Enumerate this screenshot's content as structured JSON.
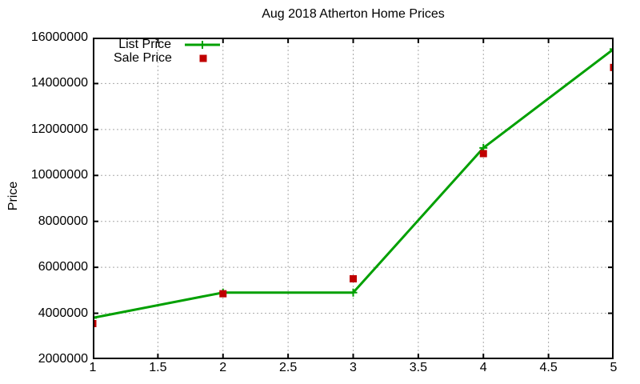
{
  "colors": {
    "background": "#ffffff",
    "axis": "#000000",
    "grid": "#a8a8a8",
    "list_price": "#00a000",
    "sale_price": "#c00000"
  },
  "chart_data": {
    "type": "line",
    "title": "Aug 2018 Atherton Home Prices",
    "xlabel": "",
    "ylabel": "Price",
    "x": [
      1,
      2,
      3,
      4,
      5
    ],
    "series": [
      {
        "name": "List Price",
        "type": "line",
        "marker": "plus",
        "color": "#00a000",
        "values": [
          3800000,
          4900000,
          4900000,
          11200000,
          15500000
        ]
      },
      {
        "name": "Sale Price",
        "type": "scatter",
        "marker": "square",
        "color": "#c00000",
        "values": [
          3550000,
          4850000,
          5500000,
          10950000,
          14700000
        ]
      }
    ],
    "xlim": [
      1,
      5
    ],
    "ylim": [
      2000000,
      16000000
    ],
    "x_ticks": [
      1,
      1.5,
      2,
      2.5,
      3,
      3.5,
      4,
      4.5,
      5
    ],
    "x_tick_labels": [
      "1",
      "1.5",
      "2",
      "2.5",
      "3",
      "3.5",
      "4",
      "4.5",
      "5"
    ],
    "y_ticks": [
      2000000,
      4000000,
      6000000,
      8000000,
      10000000,
      12000000,
      14000000,
      16000000
    ],
    "y_tick_labels": [
      "2000000",
      "4000000",
      "6000000",
      "8000000",
      "10000000",
      "12000000",
      "14000000",
      "16000000"
    ],
    "grid": true,
    "legend_position": "top-left"
  }
}
